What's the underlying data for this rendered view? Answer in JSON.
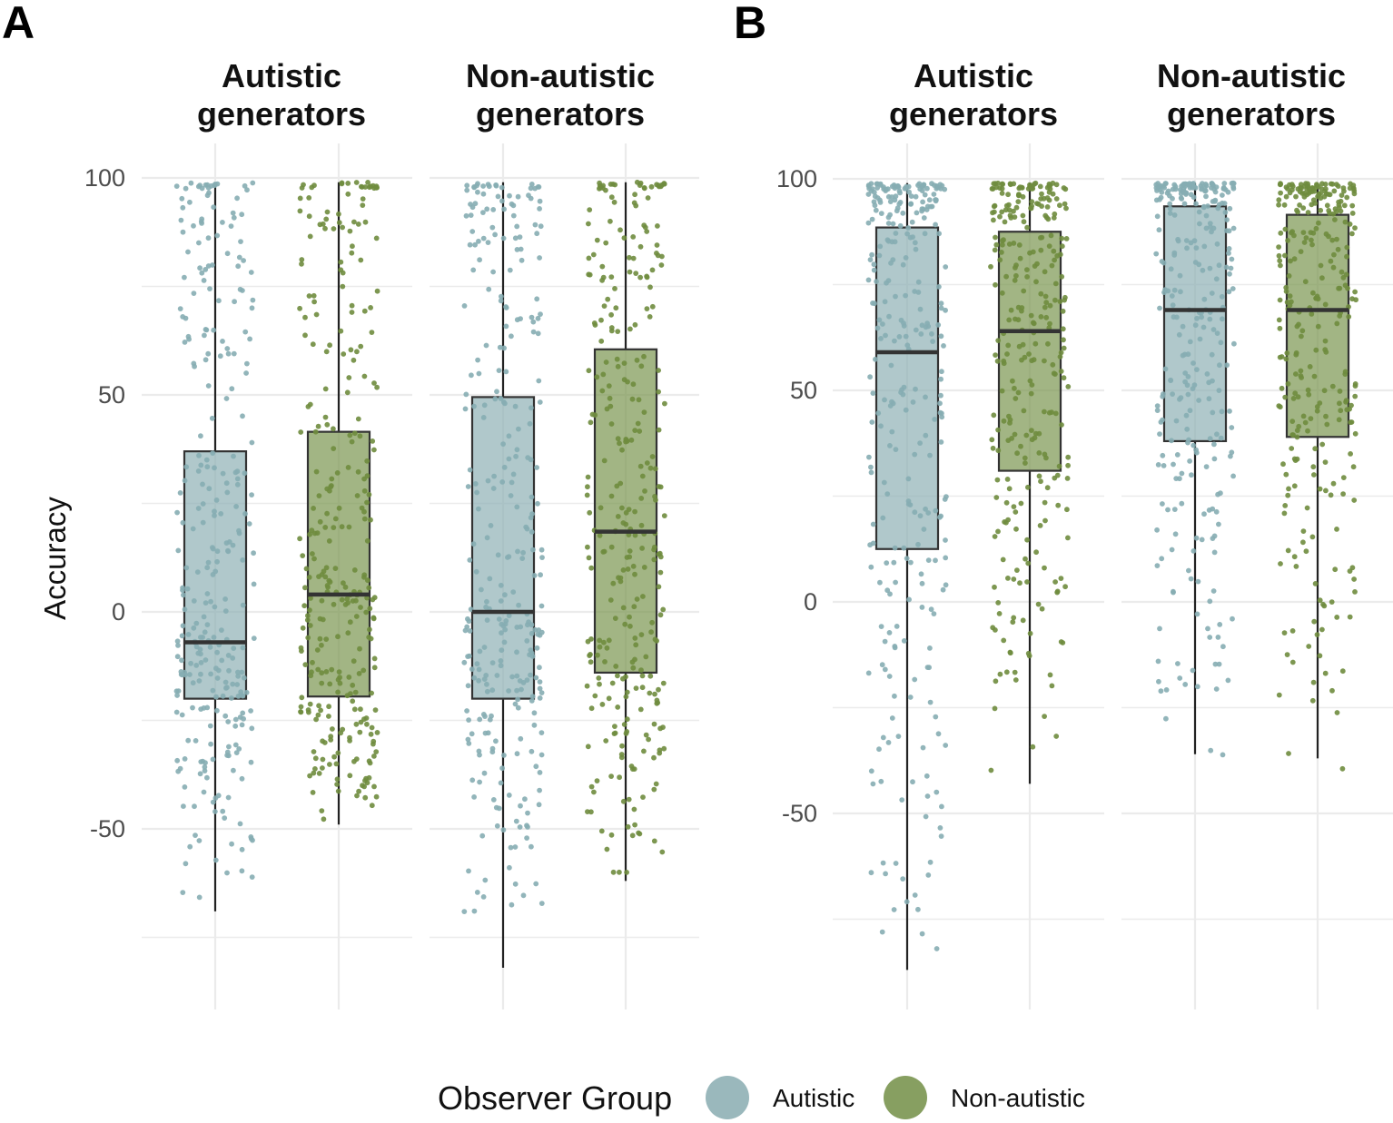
{
  "panels": [
    {
      "letter": "A"
    },
    {
      "letter": "B"
    }
  ],
  "legend": {
    "title": "Observer Group",
    "items": [
      {
        "label": "Autistic",
        "color": "#8fb0b5"
      },
      {
        "label": "Non-autistic",
        "color": "#7a9550"
      }
    ]
  },
  "chart_data": [
    {
      "type": "boxplot",
      "panel": "A",
      "ylabel": "Accuracy",
      "xlabel": "",
      "y_ticks": [
        -50,
        0,
        50,
        100
      ],
      "ylim": [
        -90,
        100
      ],
      "grid": true,
      "legend_position": "bottom",
      "point_style": "jittered raw data points",
      "facets": [
        {
          "title": "Autistic\ngenerators",
          "boxes": [
            {
              "group": "Autistic",
              "q1": -20,
              "median": -7,
              "q3": 37,
              "whisker_low": -69,
              "whisker_high": 99,
              "y_points_min": -69,
              "y_points_max": 99
            },
            {
              "group": "Non-autistic",
              "q1": -19.5,
              "median": 4,
              "q3": 41.5,
              "whisker_low": -49,
              "whisker_high": 99,
              "y_points_min": -49,
              "y_points_max": 99
            }
          ]
        },
        {
          "title": "Non-autistic\ngenerators",
          "boxes": [
            {
              "group": "Autistic",
              "q1": -20,
              "median": 0,
              "q3": 49.5,
              "whisker_low": -82,
              "whisker_high": 99,
              "y_points_min": -82,
              "y_points_max": 99
            },
            {
              "group": "Non-autistic",
              "q1": -14,
              "median": 18.5,
              "q3": 60.5,
              "whisker_low": -62,
              "whisker_high": 99,
              "y_points_min": -62,
              "y_points_max": 99
            }
          ]
        }
      ]
    },
    {
      "type": "boxplot",
      "panel": "B",
      "ylabel": "",
      "xlabel": "",
      "y_ticks": [
        -50,
        0,
        50,
        100
      ],
      "ylim": [
        -87,
        100
      ],
      "grid": true,
      "legend_position": "bottom",
      "point_style": "jittered raw data points",
      "facets": [
        {
          "title": "Autistic\ngenerators",
          "boxes": [
            {
              "group": "Autistic",
              "q1": 12.5,
              "median": 59,
              "q3": 88.5,
              "whisker_low": -87,
              "whisker_high": 99,
              "y_points_min": -87,
              "y_points_max": 99
            },
            {
              "group": "Non-autistic",
              "q1": 31,
              "median": 64,
              "q3": 87.5,
              "whisker_low": -43,
              "whisker_high": 99,
              "y_points_min": -43,
              "y_points_max": 99
            }
          ]
        },
        {
          "title": "Non-autistic\ngenerators",
          "boxes": [
            {
              "group": "Autistic",
              "q1": 38,
              "median": 69,
              "q3": 93.5,
              "whisker_low": -36,
              "whisker_high": 99,
              "y_points_min": -47,
              "y_points_max": 99
            },
            {
              "group": "Non-autistic",
              "q1": 39,
              "median": 69,
              "q3": 91.5,
              "whisker_low": -37,
              "whisker_high": 99,
              "y_points_min": -47,
              "y_points_max": 99
            }
          ]
        }
      ]
    }
  ]
}
